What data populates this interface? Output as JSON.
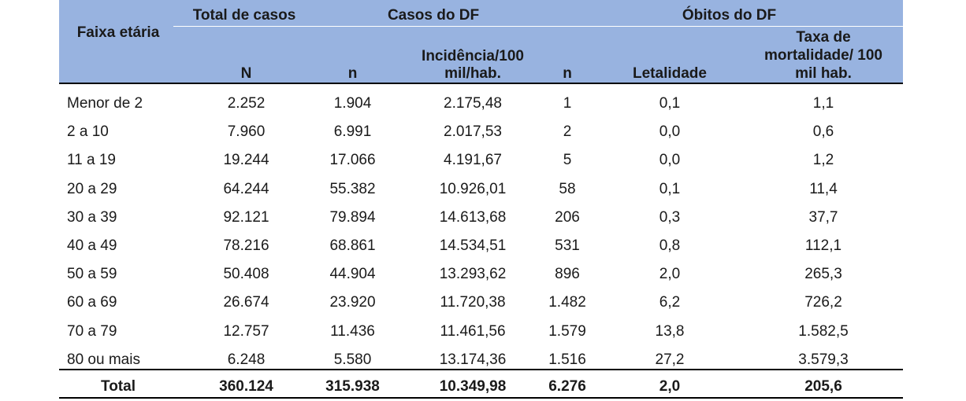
{
  "header": {
    "age_group": "Faixa etária",
    "total_cases": "Total de casos",
    "df_cases": "Casos do DF",
    "df_deaths": "Óbitos do DF",
    "col_N": "N",
    "col_n_cases": "n",
    "col_incidence_l1": "Incidência/100",
    "col_incidence_l2": "mil/hab.",
    "col_n_deaths": "n",
    "col_lethality": "Letalidade",
    "col_mortality_l1": "Taxa de",
    "col_mortality_l2": "mortalidade/ 100",
    "col_mortality_l3": "mil hab."
  },
  "rows": [
    {
      "age": "Menor de 2",
      "N": "2.252",
      "n_cases": "1.904",
      "incidence": "2.175,48",
      "n_deaths": "1",
      "lethality": "0,1",
      "mortality": "1,1"
    },
    {
      "age": "2 a 10",
      "N": "7.960",
      "n_cases": "6.991",
      "incidence": "2.017,53",
      "n_deaths": "2",
      "lethality": "0,0",
      "mortality": "0,6"
    },
    {
      "age": "11 a 19",
      "N": "19.244",
      "n_cases": "17.066",
      "incidence": "4.191,67",
      "n_deaths": "5",
      "lethality": "0,0",
      "mortality": "1,2"
    },
    {
      "age": "20 a 29",
      "N": "64.244",
      "n_cases": "55.382",
      "incidence": "10.926,01",
      "n_deaths": "58",
      "lethality": "0,1",
      "mortality": "11,4"
    },
    {
      "age": "30 a 39",
      "N": "92.121",
      "n_cases": "79.894",
      "incidence": "14.613,68",
      "n_deaths": "206",
      "lethality": "0,3",
      "mortality": "37,7"
    },
    {
      "age": "40 a 49",
      "N": "78.216",
      "n_cases": "68.861",
      "incidence": "14.534,51",
      "n_deaths": "531",
      "lethality": "0,8",
      "mortality": "112,1"
    },
    {
      "age": "50 a 59",
      "N": "50.408",
      "n_cases": "44.904",
      "incidence": "13.293,62",
      "n_deaths": "896",
      "lethality": "2,0",
      "mortality": "265,3"
    },
    {
      "age": "60 a 69",
      "N": "26.674",
      "n_cases": "23.920",
      "incidence": "11.720,38",
      "n_deaths": "1.482",
      "lethality": "6,2",
      "mortality": "726,2"
    },
    {
      "age": "70 a 79",
      "N": "12.757",
      "n_cases": "11.436",
      "incidence": "11.461,56",
      "n_deaths": "1.579",
      "lethality": "13,8",
      "mortality": "1.582,5"
    },
    {
      "age": "80 ou mais",
      "N": "6.248",
      "n_cases": "5.580",
      "incidence": "13.174,36",
      "n_deaths": "1.516",
      "lethality": "27,2",
      "mortality": "3.579,3"
    }
  ],
  "total": {
    "age": "Total",
    "N": "360.124",
    "n_cases": "315.938",
    "incidence": "10.349,98",
    "n_deaths": "6.276",
    "lethality": "2,0",
    "mortality": "205,6"
  }
}
